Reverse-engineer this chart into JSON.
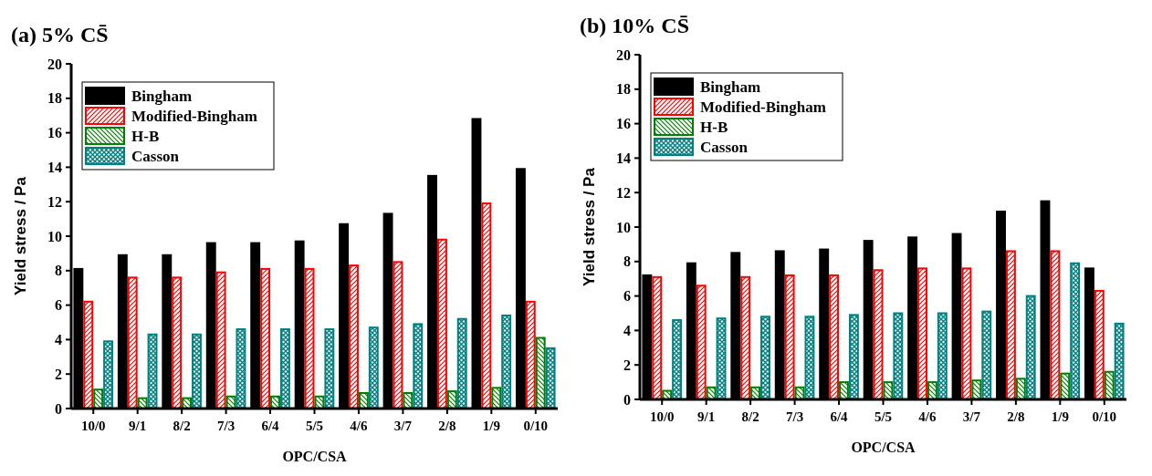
{
  "chart_data": [
    {
      "type": "bar",
      "title": "(a) 5% CS̄",
      "xlabel": "OPC/CSA",
      "ylabel": "Yield stress / Pa",
      "categories": [
        "10/0",
        "9/1",
        "8/2",
        "7/3",
        "6/4",
        "5/5",
        "4/6",
        "3/7",
        "2/8",
        "1/9",
        "0/10"
      ],
      "ylim": [
        0,
        20
      ],
      "yticks": [
        0,
        2,
        4,
        6,
        8,
        10,
        12,
        14,
        16,
        18,
        20
      ],
      "legend": "top left",
      "series": [
        {
          "name": "Bingham",
          "color": "#000000",
          "values": [
            8.1,
            8.9,
            8.9,
            9.6,
            9.6,
            9.7,
            10.7,
            11.3,
            13.5,
            16.8,
            13.9
          ]
        },
        {
          "name": "Modified-Bingham",
          "color": "#ff0000",
          "values": [
            6.2,
            7.6,
            7.6,
            7.9,
            8.1,
            8.1,
            8.3,
            8.5,
            9.8,
            11.9,
            6.2
          ]
        },
        {
          "name": "H-B",
          "color": "#008000",
          "values": [
            1.1,
            0.6,
            0.6,
            0.7,
            0.7,
            0.7,
            0.9,
            0.9,
            1.0,
            1.2,
            4.1
          ]
        },
        {
          "name": "Casson",
          "color": "#008080",
          "values": [
            3.9,
            4.3,
            4.3,
            4.6,
            4.6,
            4.6,
            4.7,
            4.9,
            5.2,
            5.4,
            3.5
          ]
        }
      ]
    },
    {
      "type": "bar",
      "title": "(b) 10% CS̄",
      "xlabel": "OPC/CSA",
      "ylabel": "Yield stress / Pa",
      "categories": [
        "10/0",
        "9/1",
        "8/2",
        "7/3",
        "6/4",
        "5/5",
        "4/6",
        "3/7",
        "2/8",
        "1/9",
        "0/10"
      ],
      "ylim": [
        0,
        20
      ],
      "yticks": [
        0,
        2,
        4,
        6,
        8,
        10,
        12,
        14,
        16,
        18,
        20
      ],
      "legend": "top left",
      "series": [
        {
          "name": "Bingham",
          "color": "#000000",
          "values": [
            7.2,
            7.9,
            8.5,
            8.6,
            8.7,
            9.2,
            9.4,
            9.6,
            10.9,
            11.5,
            7.6
          ]
        },
        {
          "name": "Modified-Bingham",
          "color": "#ff0000",
          "values": [
            7.1,
            6.6,
            7.1,
            7.2,
            7.2,
            7.5,
            7.6,
            7.6,
            8.6,
            8.6,
            6.3
          ]
        },
        {
          "name": "H-B",
          "color": "#008000",
          "values": [
            0.5,
            0.7,
            0.7,
            0.7,
            1.0,
            1.0,
            1.0,
            1.1,
            1.2,
            1.5,
            1.6
          ]
        },
        {
          "name": "Casson",
          "color": "#008080",
          "values": [
            4.6,
            4.7,
            4.8,
            4.8,
            4.9,
            5.0,
            5.0,
            5.1,
            6.0,
            7.9,
            4.4
          ]
        }
      ]
    }
  ]
}
